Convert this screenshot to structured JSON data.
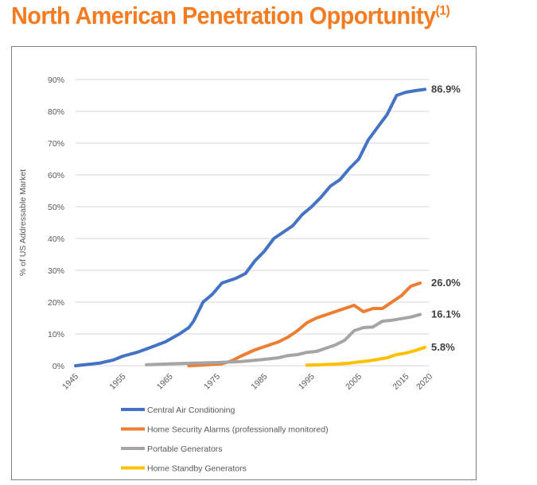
{
  "header": {
    "title": "North American Penetration Opportunity",
    "title_sup": "(1)"
  },
  "colors": {
    "title": "#f47b20",
    "grid": "#d9d9d9",
    "axis_text": "#595959"
  },
  "chart_data": {
    "type": "line",
    "ylabel": "% of US Addressable Market",
    "xlabel": "",
    "ylim": [
      0,
      90
    ],
    "xlim": [
      1945,
      2020
    ],
    "y_ticks": [
      "0%",
      "10%",
      "20%",
      "30%",
      "40%",
      "50%",
      "60%",
      "70%",
      "80%",
      "90%"
    ],
    "x_ticks": [
      "1945",
      "1955",
      "1965",
      "1975",
      "1985",
      "1995",
      "2005",
      "2015",
      "2020"
    ],
    "grid": "horizontal",
    "legend_position": "bottom",
    "series": [
      {
        "name": "Central Air Conditioning",
        "color": "#4472c4",
        "end_label": "86.9%",
        "points": [
          [
            1945,
            0
          ],
          [
            1950,
            0.8
          ],
          [
            1953,
            1.8
          ],
          [
            1955,
            3
          ],
          [
            1958,
            4.2
          ],
          [
            1961,
            5.8
          ],
          [
            1964,
            7.5
          ],
          [
            1967,
            10
          ],
          [
            1969,
            12
          ],
          [
            1970,
            14
          ],
          [
            1971,
            17
          ],
          [
            1972,
            20
          ],
          [
            1974,
            22.5
          ],
          [
            1976,
            26
          ],
          [
            1979,
            27.5
          ],
          [
            1981,
            29
          ],
          [
            1983,
            33
          ],
          [
            1985,
            36
          ],
          [
            1987,
            40
          ],
          [
            1989,
            42
          ],
          [
            1991,
            44
          ],
          [
            1993,
            47.5
          ],
          [
            1995,
            50
          ],
          [
            1997,
            53
          ],
          [
            1999,
            56.5
          ],
          [
            2001,
            58.5
          ],
          [
            2003,
            62
          ],
          [
            2005,
            65
          ],
          [
            2007,
            71
          ],
          [
            2009,
            75
          ],
          [
            2011,
            79
          ],
          [
            2013,
            85
          ],
          [
            2015,
            86
          ],
          [
            2017,
            86.5
          ],
          [
            2019,
            86.9
          ]
        ]
      },
      {
        "name": "Home Security Alarms (professionally monitored)",
        "color": "#ed7d31",
        "end_label": "26.0%",
        "points": [
          [
            1969,
            0
          ],
          [
            1973,
            0.3
          ],
          [
            1976,
            0.6
          ],
          [
            1978,
            1.5
          ],
          [
            1980,
            3
          ],
          [
            1983,
            5
          ],
          [
            1985,
            6
          ],
          [
            1988,
            7.5
          ],
          [
            1990,
            9
          ],
          [
            1992,
            11
          ],
          [
            1994,
            13.5
          ],
          [
            1996,
            15
          ],
          [
            1998,
            16
          ],
          [
            2000,
            17
          ],
          [
            2002,
            18
          ],
          [
            2004,
            19
          ],
          [
            2006,
            17
          ],
          [
            2008,
            18
          ],
          [
            2010,
            18
          ],
          [
            2012,
            20
          ],
          [
            2014,
            22
          ],
          [
            2016,
            25
          ],
          [
            2018,
            26
          ]
        ]
      },
      {
        "name": "Portable Generators",
        "color": "#a5a5a5",
        "end_label": "16.1%",
        "points": [
          [
            1960,
            0.3
          ],
          [
            1965,
            0.6
          ],
          [
            1970,
            0.8
          ],
          [
            1975,
            1
          ],
          [
            1980,
            1.3
          ],
          [
            1985,
            2
          ],
          [
            1988,
            2.5
          ],
          [
            1990,
            3.2
          ],
          [
            1992,
            3.5
          ],
          [
            1994,
            4.2
          ],
          [
            1996,
            4.5
          ],
          [
            1998,
            5.5
          ],
          [
            2000,
            6.5
          ],
          [
            2002,
            8
          ],
          [
            2004,
            11
          ],
          [
            2006,
            12
          ],
          [
            2008,
            12.2
          ],
          [
            2010,
            14
          ],
          [
            2012,
            14.3
          ],
          [
            2014,
            14.8
          ],
          [
            2016,
            15.3
          ],
          [
            2018,
            16.1
          ]
        ]
      },
      {
        "name": "Home Standby Generators",
        "color": "#ffc000",
        "end_label": "5.8%",
        "points": [
          [
            1994,
            0.2
          ],
          [
            1997,
            0.3
          ],
          [
            2000,
            0.5
          ],
          [
            2003,
            0.8
          ],
          [
            2005,
            1.2
          ],
          [
            2007,
            1.5
          ],
          [
            2009,
            2
          ],
          [
            2011,
            2.5
          ],
          [
            2013,
            3.5
          ],
          [
            2015,
            4
          ],
          [
            2017,
            4.8
          ],
          [
            2019,
            5.8
          ]
        ]
      }
    ]
  }
}
